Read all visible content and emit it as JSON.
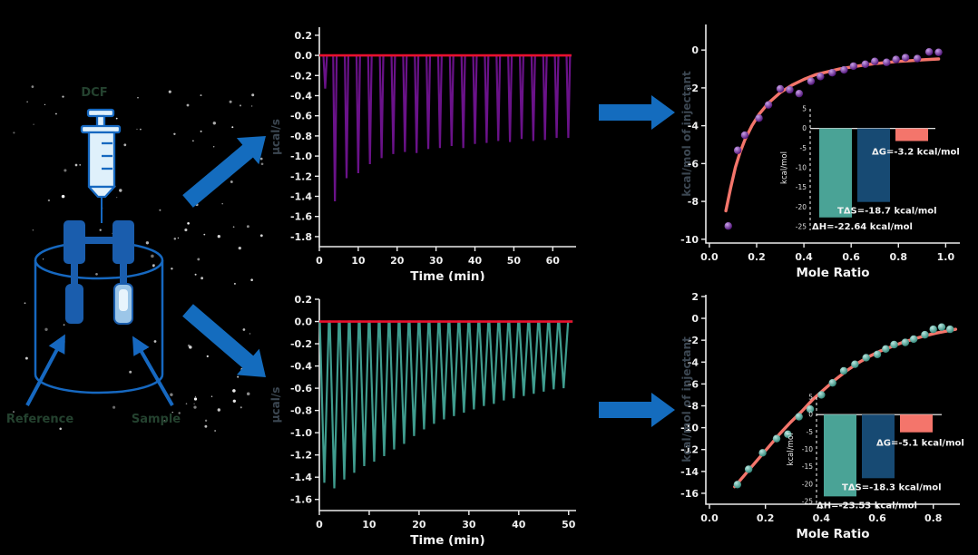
{
  "figure": {
    "background": "#000000"
  },
  "schematic": {
    "syringe_label": "DCF",
    "left_arrow_label": "Reference",
    "right_arrow_label": "Sample",
    "colors": {
      "outline": "#1668c0",
      "fill_light": "#dff0fb",
      "cell_solid": "#1a5dad",
      "cell_light": "#9cc6e8",
      "label_color": "#24422f",
      "big_arrow": "#146cbe"
    }
  },
  "chart_data": [
    {
      "id": "thermo-top",
      "type": "thermogram",
      "xlabel": "Time (min)",
      "ylabel": "µcal/s",
      "xlim": [
        0,
        66
      ],
      "ylim": [
        -1.9,
        0.28
      ],
      "xticks": [
        0,
        10,
        20,
        30,
        40,
        50,
        60
      ],
      "yticks": [
        0.2,
        0.0,
        -0.2,
        -0.4,
        -0.6,
        -0.8,
        -1.0,
        -1.2,
        -1.4,
        -1.6,
        -1.8
      ],
      "baseline_value": 0,
      "baseline_color": "#e8112d",
      "spike_color": "#6a1289",
      "spike_width": 0.45,
      "x_end": 64.8,
      "spikes": [
        [
          1.5,
          -0.33
        ],
        [
          4,
          -1.45
        ],
        [
          7,
          -1.22
        ],
        [
          10,
          -1.17
        ],
        [
          13,
          -1.08
        ],
        [
          16,
          -1.02
        ],
        [
          19,
          -0.98
        ],
        [
          22,
          -0.96
        ],
        [
          25,
          -0.97
        ],
        [
          28,
          -0.93
        ],
        [
          31,
          -0.92
        ],
        [
          34,
          -0.9
        ],
        [
          37,
          -0.92
        ],
        [
          40,
          -0.88
        ],
        [
          43,
          -0.87
        ],
        [
          46,
          -0.85
        ],
        [
          49,
          -0.86
        ],
        [
          52,
          -0.83
        ],
        [
          55,
          -0.85
        ],
        [
          58,
          -0.84
        ],
        [
          61,
          -0.82
        ],
        [
          64,
          -0.82
        ]
      ]
    },
    {
      "id": "thermo-bottom",
      "type": "thermogram",
      "xlabel": "Time (min)",
      "ylabel": "µcal/s",
      "xlim": [
        0,
        51.5
      ],
      "ylim": [
        -1.7,
        0.2
      ],
      "xticks": [
        0,
        10,
        20,
        30,
        40,
        50
      ],
      "yticks": [
        0.2,
        0.0,
        -0.2,
        -0.4,
        -0.6,
        -0.8,
        -1.0,
        -1.2,
        -1.4,
        -1.6
      ],
      "baseline_value": 0,
      "baseline_color": "#e8112d",
      "spike_color": "#3f9c8e",
      "spike_width": 0.9,
      "x_end": 50.8,
      "spikes": [
        [
          1,
          -1.45
        ],
        [
          3,
          -1.5
        ],
        [
          5,
          -1.42
        ],
        [
          7,
          -1.36
        ],
        [
          9,
          -1.3
        ],
        [
          11,
          -1.26
        ],
        [
          13,
          -1.21
        ],
        [
          15,
          -1.15
        ],
        [
          17,
          -1.1
        ],
        [
          19,
          -1.03
        ],
        [
          21,
          -0.97
        ],
        [
          23,
          -0.92
        ],
        [
          25,
          -0.88
        ],
        [
          27,
          -0.85
        ],
        [
          29,
          -0.82
        ],
        [
          31,
          -0.79
        ],
        [
          33,
          -0.76
        ],
        [
          35,
          -0.74
        ],
        [
          37,
          -0.71
        ],
        [
          39,
          -0.69
        ],
        [
          41,
          -0.67
        ],
        [
          43,
          -0.65
        ],
        [
          45,
          -0.63
        ],
        [
          47,
          -0.61
        ],
        [
          49,
          -0.6
        ]
      ]
    },
    {
      "id": "iso-top",
      "type": "isotherm",
      "xlabel": "Mole Ratio",
      "ylabel": "kcal/mol of injectant",
      "xlim": [
        -0.015,
        1.06
      ],
      "ylim": [
        -10.2,
        1.35
      ],
      "xticks": [
        0.0,
        0.2,
        0.4,
        0.6,
        0.8,
        1.0
      ],
      "yticks": [
        0,
        -2,
        -4,
        -6,
        -8,
        -10
      ],
      "fit_color": "#f4756b",
      "point_gradient": [
        "#c9a0e8",
        "#4a0d73"
      ],
      "points": [
        [
          0.08,
          -9.3
        ],
        [
          0.12,
          -5.3
        ],
        [
          0.15,
          -4.5
        ],
        [
          0.21,
          -3.6
        ],
        [
          0.25,
          -2.9
        ],
        [
          0.3,
          -2.05
        ],
        [
          0.34,
          -2.1
        ],
        [
          0.38,
          -2.3
        ],
        [
          0.43,
          -1.65
        ],
        [
          0.47,
          -1.4
        ],
        [
          0.52,
          -1.2
        ],
        [
          0.57,
          -1.05
        ],
        [
          0.61,
          -0.85
        ],
        [
          0.66,
          -0.75
        ],
        [
          0.7,
          -0.6
        ],
        [
          0.75,
          -0.65
        ],
        [
          0.79,
          -0.5
        ],
        [
          0.83,
          -0.4
        ],
        [
          0.88,
          -0.45
        ],
        [
          0.93,
          -0.1
        ],
        [
          0.97,
          -0.12
        ]
      ],
      "fit": [
        [
          0.07,
          -8.5
        ],
        [
          0.09,
          -7.3
        ],
        [
          0.11,
          -6.2
        ],
        [
          0.13,
          -5.4
        ],
        [
          0.15,
          -4.75
        ],
        [
          0.18,
          -4.0
        ],
        [
          0.21,
          -3.4
        ],
        [
          0.25,
          -2.8
        ],
        [
          0.3,
          -2.25
        ],
        [
          0.35,
          -1.85
        ],
        [
          0.4,
          -1.55
        ],
        [
          0.45,
          -1.3
        ],
        [
          0.5,
          -1.15
        ],
        [
          0.55,
          -1.0
        ],
        [
          0.6,
          -0.9
        ],
        [
          0.65,
          -0.8
        ],
        [
          0.7,
          -0.72
        ],
        [
          0.75,
          -0.66
        ],
        [
          0.8,
          -0.6
        ],
        [
          0.85,
          -0.56
        ],
        [
          0.9,
          -0.52
        ],
        [
          0.97,
          -0.47
        ]
      ],
      "inset": {
        "ylabel": "kcal/mol",
        "ylim": [
          5,
          -25
        ],
        "yticks": [
          5,
          0,
          -5,
          -10,
          -15,
          -20,
          -25
        ],
        "bars": [
          {
            "name": "ΔH",
            "label": "ΔH=-22.64 kcal/mol",
            "value": -22.64,
            "color": "#4aa396"
          },
          {
            "name": "TΔS",
            "label": "TΔS=-18.7 kcal/mol",
            "value": -18.7,
            "color": "#174a73"
          },
          {
            "name": "ΔG",
            "label": "ΔG=-3.2 kcal/mol",
            "value": -3.2,
            "color": "#f4756b"
          }
        ]
      }
    },
    {
      "id": "iso-bottom",
      "type": "isotherm",
      "xlabel": "Mole Ratio",
      "ylabel": "kcal/mol of injectant",
      "xlim": [
        -0.013,
        0.895
      ],
      "ylim": [
        -17.0,
        2.16
      ],
      "xticks": [
        0.0,
        0.2,
        0.4,
        0.6,
        0.8
      ],
      "yticks": [
        2,
        0,
        -2,
        -4,
        -6,
        -8,
        -10,
        -12,
        -14,
        -16
      ],
      "fit_color": "#f4756b",
      "point_gradient": [
        "#b8e6df",
        "#2e8577"
      ],
      "points": [
        [
          0.1,
          -15.2
        ],
        [
          0.14,
          -13.8
        ],
        [
          0.19,
          -12.3
        ],
        [
          0.24,
          -11.0
        ],
        [
          0.28,
          -10.6
        ],
        [
          0.32,
          -9.0
        ],
        [
          0.36,
          -8.3
        ],
        [
          0.4,
          -7.0
        ],
        [
          0.44,
          -5.9
        ],
        [
          0.48,
          -4.8
        ],
        [
          0.52,
          -4.2
        ],
        [
          0.56,
          -3.6
        ],
        [
          0.6,
          -3.3
        ],
        [
          0.63,
          -2.8
        ],
        [
          0.66,
          -2.4
        ],
        [
          0.7,
          -2.2
        ],
        [
          0.73,
          -1.9
        ],
        [
          0.77,
          -1.5
        ],
        [
          0.8,
          -1.0
        ],
        [
          0.83,
          -0.8
        ],
        [
          0.86,
          -1.0
        ]
      ],
      "fit": [
        [
          0.09,
          -15.4
        ],
        [
          0.13,
          -14.2
        ],
        [
          0.17,
          -13.0
        ],
        [
          0.21,
          -11.8
        ],
        [
          0.25,
          -10.6
        ],
        [
          0.29,
          -9.5
        ],
        [
          0.33,
          -8.5
        ],
        [
          0.37,
          -7.4
        ],
        [
          0.41,
          -6.5
        ],
        [
          0.45,
          -5.6
        ],
        [
          0.49,
          -4.8
        ],
        [
          0.53,
          -4.1
        ],
        [
          0.57,
          -3.5
        ],
        [
          0.61,
          -3.0
        ],
        [
          0.65,
          -2.6
        ],
        [
          0.69,
          -2.2
        ],
        [
          0.73,
          -1.9
        ],
        [
          0.77,
          -1.6
        ],
        [
          0.81,
          -1.35
        ],
        [
          0.85,
          -1.15
        ],
        [
          0.88,
          -1.0
        ]
      ],
      "inset": {
        "ylabel": "kcal/mol",
        "ylim": [
          5,
          -25
        ],
        "yticks": [
          5,
          0,
          -5,
          -10,
          -15,
          -20,
          -25
        ],
        "bars": [
          {
            "name": "ΔH",
            "label": "ΔH=-23.53 kcal/mol",
            "value": -23.53,
            "color": "#4aa396"
          },
          {
            "name": "TΔS",
            "label": "TΔS=-18.3 kcal/mol",
            "value": -18.3,
            "color": "#174a73"
          },
          {
            "name": "ΔG",
            "label": "ΔG=-5.1 kcal/mol",
            "value": -5.1,
            "color": "#f4756b"
          }
        ]
      }
    }
  ]
}
